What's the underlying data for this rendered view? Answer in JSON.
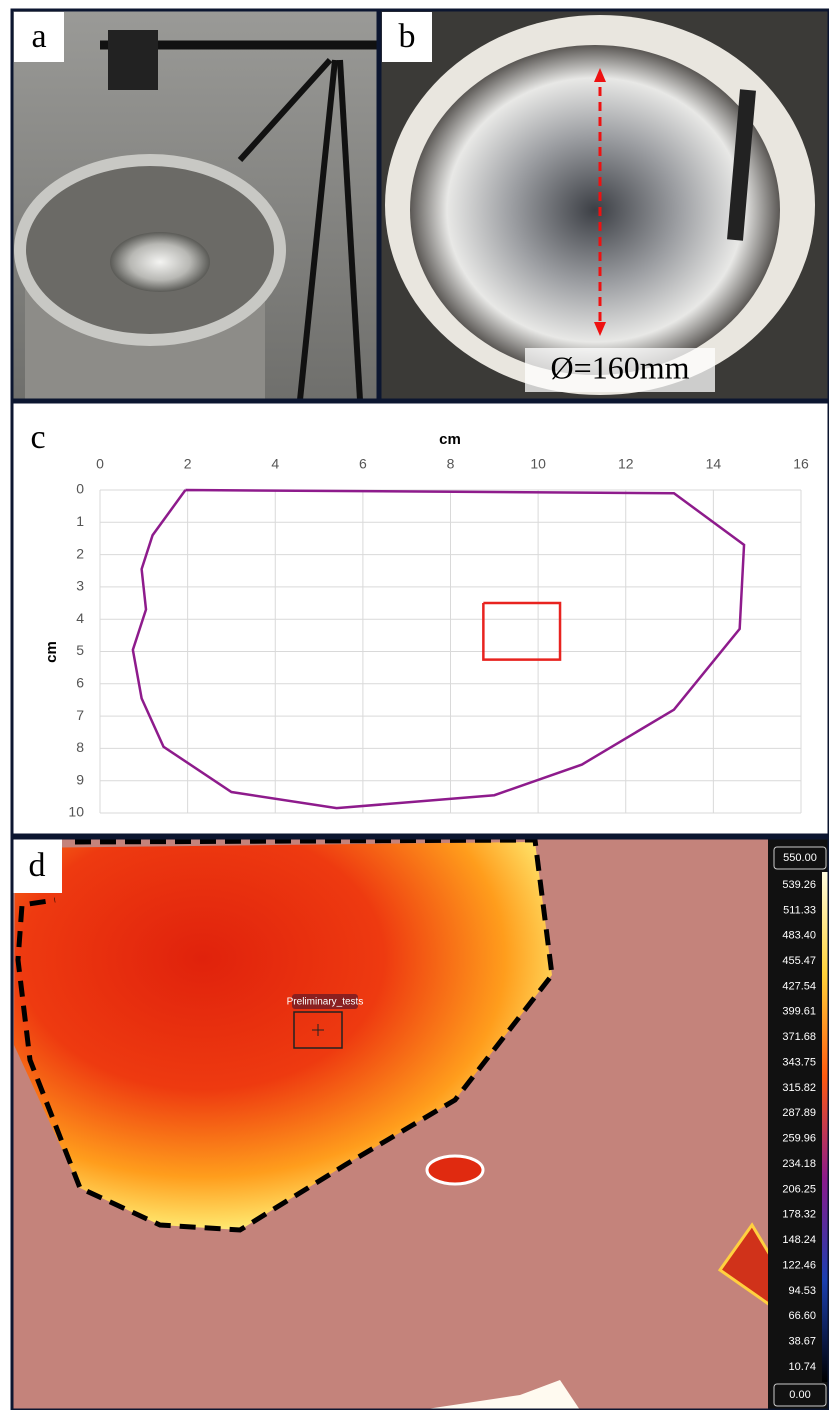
{
  "panels": {
    "a": "a",
    "b": "b",
    "b_annotation": "Ø=160mm",
    "c": "c",
    "d": "d"
  },
  "chart_data": {
    "type": "line",
    "x_label": "cm",
    "y_label": "cm",
    "xlim": [
      0,
      16
    ],
    "xticks": [
      0,
      2,
      4,
      6,
      8,
      10,
      12,
      14,
      16
    ],
    "ylim": [
      0,
      10
    ],
    "yticks": [
      0,
      1,
      2,
      3,
      4,
      5,
      6,
      7,
      8,
      9,
      10
    ],
    "y_inverted": true,
    "x_axis_top": true,
    "grid": true,
    "series": [
      {
        "color": "#8e1b8c",
        "x": [
          1.95,
          13.1,
          14.7,
          14.6,
          13.1,
          11.0,
          9.0,
          5.4,
          3.0,
          1.45,
          0.95,
          0.75,
          1.05,
          0.95,
          1.2,
          1.95
        ],
        "values": [
          0,
          0.1,
          1.7,
          4.3,
          6.8,
          8.5,
          9.45,
          9.85,
          9.35,
          7.95,
          6.45,
          4.95,
          3.7,
          2.45,
          1.4,
          0
        ]
      },
      {
        "color": "#e8231f",
        "x": [
          8.75,
          10.5,
          10.5,
          8.75,
          8.75
        ],
        "values": [
          3.5,
          3.5,
          5.25,
          5.25,
          3.5
        ]
      }
    ]
  },
  "thermal": {
    "tag": "Preliminary_tests",
    "scale_max": "550.00",
    "scale_min": "0.00",
    "scale_labels": [
      "539.26",
      "511.33",
      "483.40",
      "455.47",
      "427.54",
      "399.61",
      "371.68",
      "343.75",
      "315.82",
      "287.89",
      "259.96",
      "234.18",
      "206.25",
      "178.32",
      "148.24",
      "122.46",
      "94.53",
      "66.60",
      "38.67",
      "10.74"
    ]
  }
}
